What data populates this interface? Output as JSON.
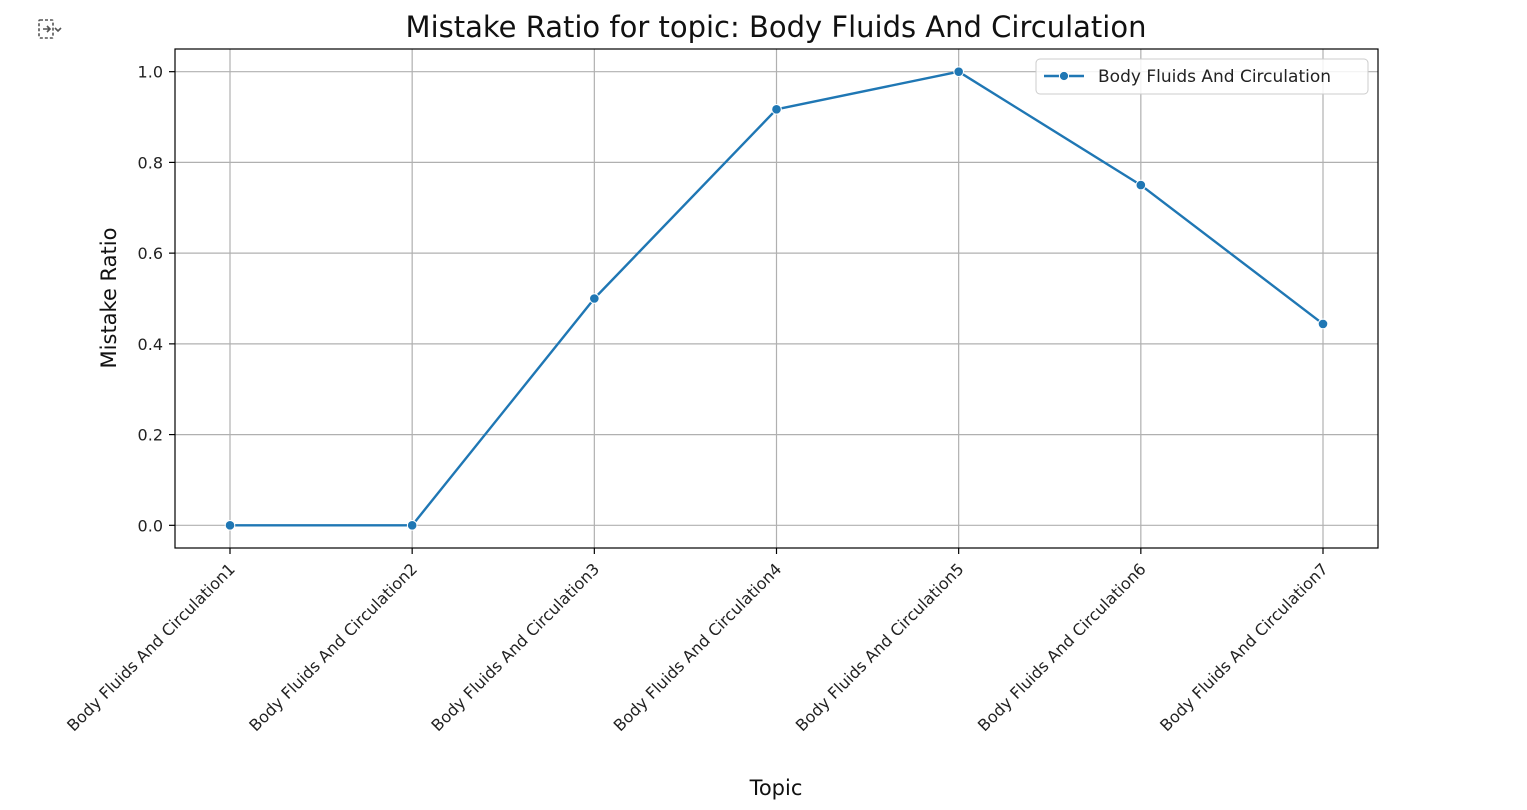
{
  "notebook": {
    "output_icon": "output-collapse-icon"
  },
  "chart_data": {
    "type": "line",
    "title": "Mistake Ratio for topic: Body Fluids And Circulation",
    "xlabel": "Topic",
    "ylabel": "Mistake Ratio",
    "categories": [
      "Body Fluids And Circulation1",
      "Body Fluids And Circulation2",
      "Body Fluids And Circulation3",
      "Body Fluids And Circulation4",
      "Body Fluids And Circulation5",
      "Body Fluids And Circulation6",
      "Body Fluids And Circulation7"
    ],
    "series": [
      {
        "name": "Body Fluids And Circulation",
        "values": [
          0.0,
          0.0,
          0.5,
          0.917,
          1.0,
          0.75,
          0.444
        ],
        "color": "#1f77b4",
        "marker": "circle"
      }
    ],
    "ylim": [
      -0.05,
      1.05
    ],
    "yticks": [
      0.0,
      0.2,
      0.4,
      0.6,
      0.8,
      1.0
    ],
    "ytick_labels": [
      "0.0",
      "0.2",
      "0.4",
      "0.6",
      "0.8",
      "1.0"
    ],
    "grid": true,
    "legend": "top-right",
    "xtick_rotation": 45
  }
}
